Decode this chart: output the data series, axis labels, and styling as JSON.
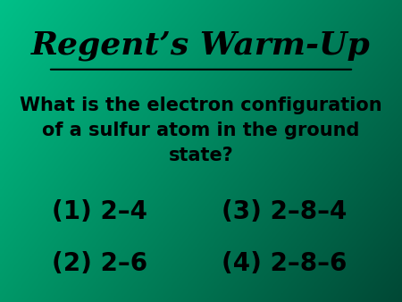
{
  "title": "Regent’s Warm-Up",
  "question": "What is the electron configuration\nof a sulfur atom in the ground\nstate?",
  "answer1": "(1) 2–4",
  "answer2": "(2) 2–6",
  "answer3": "(3) 2–8–4",
  "answer4": "(4) 2–8–6",
  "text_color": "#000000",
  "title_color": "#000000",
  "title_fontsize": 26,
  "question_fontsize": 15,
  "answer_fontsize": 20,
  "fig_width": 4.5,
  "fig_height": 3.38
}
